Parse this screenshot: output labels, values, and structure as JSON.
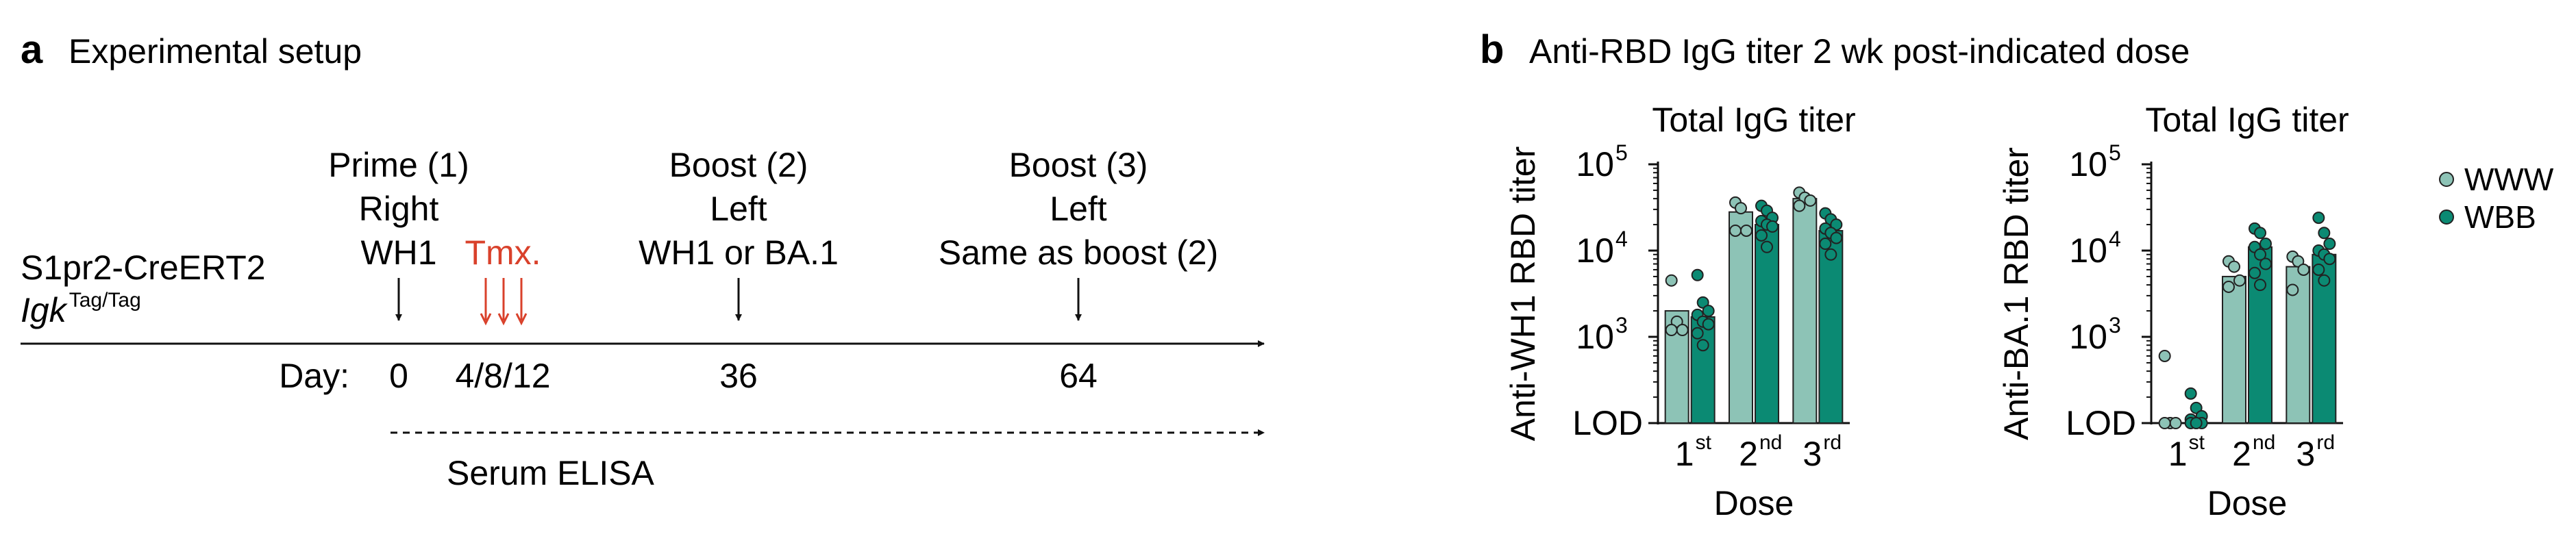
{
  "panel_a": {
    "letter": "a",
    "title": "Experimental setup",
    "strain_line1": "S1pr2-CreERT2",
    "strain_line2_main": "Igk",
    "strain_line2_sup": "Tag/Tag",
    "day_label": "Day:",
    "events": [
      {
        "lines": [
          "Prime (1)",
          "Right",
          "WH1"
        ],
        "day": "0"
      },
      {
        "lines": [
          "Boost (2)",
          "Left",
          "WH1 or BA.1"
        ],
        "day": "36"
      },
      {
        "lines": [
          "Boost (3)",
          "Left",
          "Same as boost (2)"
        ],
        "day": "64"
      }
    ],
    "tmx_label": "Tmx.",
    "tmx_days": "4/8/12",
    "tmx_color": "#d9412b",
    "serum_label": "Serum ELISA"
  },
  "panel_b": {
    "letter": "b",
    "title": "Anti-RBD IgG titer 2 wk post-indicated dose"
  },
  "legend": {
    "items": [
      {
        "name": "WWW",
        "color": "#8dc3b6"
      },
      {
        "name": "WBB",
        "color": "#0b8a73"
      }
    ]
  },
  "chart_data": [
    {
      "type": "bar",
      "title": "Total IgG titer",
      "ylabel": "Anti-WH1 RBD titer",
      "xlabel": "Dose",
      "categories": [
        {
          "base": "1",
          "sup": "st"
        },
        {
          "base": "2",
          "sup": "nd"
        },
        {
          "base": "3",
          "sup": "rd"
        }
      ],
      "yscale": "log",
      "ylim": [
        100,
        100000
      ],
      "yticks": [
        {
          "value": 100,
          "label": "LOD"
        },
        {
          "value": 1000,
          "base": "10",
          "exp": "3"
        },
        {
          "value": 10000,
          "base": "10",
          "exp": "4"
        },
        {
          "value": 100000,
          "base": "10",
          "exp": "5"
        }
      ],
      "series": [
        {
          "name": "WWW",
          "values": [
            2000,
            28000,
            40000
          ],
          "points": [
            [
              4500,
              1500,
              1200,
              1200
            ],
            [
              36000,
              31000,
              17000,
              17000
            ],
            [
              47000,
              41000,
              38000,
              33000
            ]
          ]
        },
        {
          "name": "WBB",
          "values": [
            1700,
            20000,
            17000
          ],
          "points": [
            [
              5200,
              2500,
              2000,
              1800,
              1500,
              1400,
              1100,
              800
            ],
            [
              33000,
              29000,
              24000,
              22000,
              20000,
              19000,
              15000,
              11000
            ],
            [
              27000,
              23000,
              20000,
              18000,
              16000,
              14000,
              12000,
              9000
            ]
          ]
        }
      ]
    },
    {
      "type": "bar",
      "title": "Total IgG titer",
      "ylabel": "Anti-BA.1 RBD titer",
      "xlabel": "Dose",
      "categories": [
        {
          "base": "1",
          "sup": "st"
        },
        {
          "base": "2",
          "sup": "nd"
        },
        {
          "base": "3",
          "sup": "rd"
        }
      ],
      "yscale": "log",
      "ylim": [
        100,
        100000
      ],
      "yticks": [
        {
          "value": 100,
          "label": "LOD"
        },
        {
          "value": 1000,
          "base": "10",
          "exp": "3"
        },
        {
          "value": 10000,
          "base": "10",
          "exp": "4"
        },
        {
          "value": 100000,
          "base": "10",
          "exp": "5"
        }
      ],
      "series": [
        {
          "name": "WWW",
          "values": [
            100,
            5000,
            6500
          ],
          "points": [
            [
              600,
              100,
              100,
              100
            ],
            [
              7500,
              6500,
              4500,
              3800
            ],
            [
              8500,
              7500,
              6000,
              3500
            ]
          ]
        },
        {
          "name": "WBB",
          "values": [
            100,
            11000,
            9000
          ],
          "points": [
            [
              220,
              150,
              120,
              110,
              100,
              100,
              100,
              100
            ],
            [
              18000,
              16000,
              12000,
              11000,
              9000,
              7000,
              5500,
              4000
            ],
            [
              24000,
              16000,
              12000,
              10000,
              9000,
              8000,
              6000,
              4500
            ]
          ]
        }
      ]
    }
  ]
}
